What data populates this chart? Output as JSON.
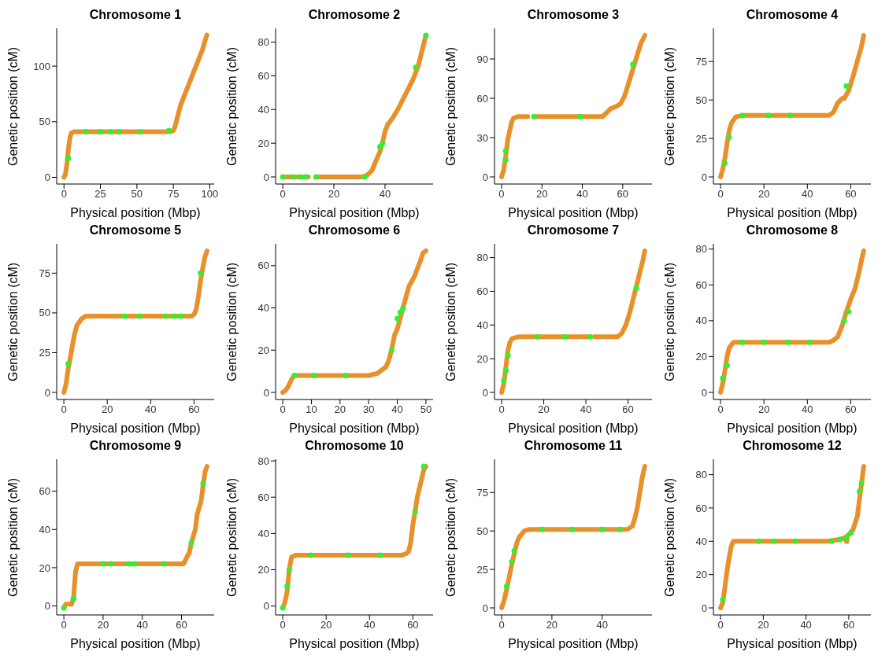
{
  "chart_data": [
    {
      "type": "scatter",
      "title": "Chromosome 1",
      "xlabel": "Physical position (Mbp)",
      "ylabel": "Genetic position (cM)",
      "xlim": [
        -5,
        103
      ],
      "xticks": [
        0,
        25,
        50,
        75,
        100
      ],
      "ylim": [
        -6,
        134
      ],
      "yticks": [
        0,
        50,
        100
      ],
      "grid": false,
      "legend": false,
      "series": [
        {
          "type": "line",
          "color": "#e8902a",
          "x": [
            0,
            1,
            2,
            3,
            4,
            5,
            7,
            20,
            50,
            72,
            75,
            76,
            78,
            80,
            83,
            86,
            89,
            92,
            95,
            97,
            98
          ],
          "values": [
            0,
            3,
            12,
            25,
            35,
            40,
            41,
            41,
            41,
            41,
            42,
            45,
            55,
            65,
            75,
            85,
            95,
            105,
            115,
            124,
            128
          ]
        },
        {
          "type": "scatter",
          "color": "#33ee33",
          "x": [
            3,
            15,
            25,
            32,
            38,
            52,
            72
          ],
          "values": [
            17,
            41,
            41,
            41,
            41,
            41,
            42
          ]
        }
      ]
    },
    {
      "type": "scatter",
      "title": "Chromosome 2",
      "xlabel": "Physical position (Mbp)",
      "ylabel": "Genetic position (cM)",
      "xlim": [
        -2.8,
        58.8
      ],
      "xticks": [
        0,
        20,
        40
      ],
      "ylim": [
        -4.2,
        88.2
      ],
      "yticks": [
        0,
        20,
        40,
        60,
        80
      ],
      "grid": false,
      "legend": false,
      "series": [
        {
          "type": "line",
          "color": "#e8902a",
          "x": [
            0,
            10,
            11.5,
            13,
            25,
            31,
            33,
            35,
            36,
            38,
            39,
            40,
            41,
            43,
            45,
            47,
            49,
            51,
            53,
            54,
            55,
            56
          ],
          "values": [
            0,
            0,
            null,
            0,
            0,
            0,
            1,
            4,
            8,
            15,
            20,
            27,
            31,
            35,
            40,
            46,
            52,
            58,
            66,
            72,
            78,
            84
          ]
        },
        {
          "type": "scatter",
          "color": "#33ee33",
          "x": [
            0,
            4,
            7,
            9,
            13,
            32,
            38,
            39,
            52,
            56
          ],
          "values": [
            0,
            0,
            0,
            0,
            0,
            0,
            18,
            20,
            65,
            84
          ]
        }
      ]
    },
    {
      "type": "scatter",
      "title": "Chromosome 3",
      "xlabel": "Physical position (Mbp)",
      "ylabel": "Genetic position (cM)",
      "xlim": [
        -3.5,
        74.5
      ],
      "xticks": [
        0,
        20,
        40,
        60
      ],
      "ylim": [
        -5.4,
        113.4
      ],
      "yticks": [
        0,
        30,
        60,
        90
      ],
      "grid": false,
      "legend": false,
      "series": [
        {
          "type": "line",
          "color": "#e8902a",
          "x": [
            0,
            1,
            2,
            3,
            4,
            5,
            6,
            8,
            13,
            14.5,
            16,
            40,
            50,
            52,
            54,
            57,
            59,
            61,
            63,
            65,
            67,
            69,
            71
          ],
          "values": [
            0,
            5,
            15,
            28,
            35,
            42,
            45,
            46,
            46,
            null,
            46,
            46,
            46,
            49,
            52,
            54,
            56,
            62,
            72,
            82,
            92,
            102,
            108
          ]
        },
        {
          "type": "scatter",
          "color": "#33ee33",
          "x": [
            2,
            2,
            16,
            39,
            65
          ],
          "values": [
            13,
            20,
            46,
            46,
            86
          ]
        }
      ]
    },
    {
      "type": "scatter",
      "title": "Chromosome 4",
      "xlabel": "Physical position (Mbp)",
      "ylabel": "Genetic position (cM)",
      "xlim": [
        -3.3,
        69.3
      ],
      "xticks": [
        0,
        20,
        40,
        60
      ],
      "ylim": [
        -4.6,
        96.6
      ],
      "yticks": [
        0,
        25,
        50,
        75
      ],
      "grid": false,
      "legend": false,
      "series": [
        {
          "type": "line",
          "color": "#e8902a",
          "x": [
            0,
            1,
            2,
            3,
            4,
            5,
            7,
            10,
            30,
            50,
            52,
            54,
            56,
            57,
            59,
            61,
            63,
            65,
            66
          ],
          "values": [
            0,
            5,
            12,
            22,
            30,
            35,
            39,
            40,
            40,
            40,
            42,
            48,
            51,
            51,
            56,
            65,
            75,
            85,
            92
          ]
        },
        {
          "type": "scatter",
          "color": "#33ee33",
          "x": [
            2,
            4,
            10,
            22,
            32,
            58
          ],
          "values": [
            9,
            26,
            40,
            40,
            40,
            59
          ]
        }
      ]
    },
    {
      "type": "scatter",
      "title": "Chromosome 5",
      "xlabel": "Physical position (Mbp)",
      "ylabel": "Genetic position (cM)",
      "xlim": [
        -3.3,
        69.3
      ],
      "xticks": [
        0,
        20,
        40,
        60
      ],
      "ylim": [
        -4.45,
        93.45
      ],
      "yticks": [
        0,
        25,
        50,
        75
      ],
      "grid": false,
      "legend": false,
      "series": [
        {
          "type": "line",
          "color": "#e8902a",
          "x": [
            0,
            1,
            2,
            3,
            4,
            5,
            6,
            8,
            10,
            30,
            59,
            60,
            61,
            62,
            63,
            64,
            65,
            66
          ],
          "values": [
            0,
            5,
            15,
            22,
            30,
            37,
            42,
            46,
            48,
            48,
            48,
            49,
            52,
            60,
            70,
            78,
            85,
            89
          ]
        },
        {
          "type": "scatter",
          "color": "#33ee33",
          "x": [
            2,
            28,
            35,
            47,
            51,
            54,
            63
          ],
          "values": [
            18,
            48,
            48,
            48,
            48,
            48,
            75
          ]
        }
      ]
    },
    {
      "type": "scatter",
      "title": "Chromosome 6",
      "xlabel": "Physical position (Mbp)",
      "ylabel": "Genetic position (cM)",
      "xlim": [
        -2.5,
        52.5
      ],
      "xticks": [
        0,
        10,
        20,
        30,
        40,
        50
      ],
      "ylim": [
        -3.35,
        70.35
      ],
      "yticks": [
        0,
        20,
        40,
        60
      ],
      "grid": false,
      "legend": false,
      "series": [
        {
          "type": "line",
          "color": "#e8902a",
          "x": [
            0,
            1,
            2,
            3,
            4,
            8,
            10,
            30,
            33,
            35,
            36,
            37,
            38,
            39,
            40,
            41,
            42,
            43,
            44,
            46,
            48,
            49,
            50
          ],
          "values": [
            0,
            1,
            3,
            6,
            8,
            8,
            8,
            8,
            9,
            11,
            12,
            15,
            20,
            27,
            30,
            35,
            40,
            45,
            50,
            55,
            62,
            66,
            67
          ]
        },
        {
          "type": "scatter",
          "color": "#33ee33",
          "x": [
            4,
            11,
            22,
            38,
            40,
            41,
            42
          ],
          "values": [
            8,
            8,
            8,
            20,
            35,
            38,
            40
          ]
        }
      ]
    },
    {
      "type": "scatter",
      "title": "Chromosome 7",
      "xlabel": "Physical position (Mbp)",
      "ylabel": "Genetic position (cM)",
      "xlim": [
        -3.4,
        71.4
      ],
      "xticks": [
        0,
        20,
        40,
        60
      ],
      "ylim": [
        -4.2,
        88.2
      ],
      "yticks": [
        0,
        20,
        40,
        60,
        80
      ],
      "grid": false,
      "legend": false,
      "series": [
        {
          "type": "line",
          "color": "#e8902a",
          "x": [
            0,
            1,
            2,
            3,
            4,
            5,
            8,
            20,
            42,
            43,
            44,
            55,
            57,
            59,
            61,
            63,
            65,
            67,
            68
          ],
          "values": [
            0,
            5,
            15,
            25,
            30,
            32,
            33,
            33,
            33,
            null,
            33,
            33,
            35,
            40,
            48,
            58,
            68,
            78,
            84
          ]
        },
        {
          "type": "scatter",
          "color": "#33ee33",
          "x": [
            1,
            2,
            3,
            17,
            30,
            42,
            64
          ],
          "values": [
            7,
            13,
            22,
            33,
            33,
            33,
            62
          ]
        }
      ]
    },
    {
      "type": "scatter",
      "title": "Chromosome 8",
      "xlabel": "Physical position (Mbp)",
      "ylabel": "Genetic position (cM)",
      "xlim": [
        -3.3,
        69.3
      ],
      "xticks": [
        0,
        20,
        40,
        60
      ],
      "ylim": [
        -3.95,
        82.95
      ],
      "yticks": [
        0,
        20,
        40,
        60,
        80
      ],
      "grid": false,
      "legend": false,
      "series": [
        {
          "type": "line",
          "color": "#e8902a",
          "x": [
            0,
            1,
            2,
            3,
            4,
            6,
            10,
            50,
            52,
            54,
            56,
            58,
            60,
            62,
            64,
            65,
            66
          ],
          "values": [
            0,
            5,
            12,
            20,
            25,
            28,
            28,
            28,
            29,
            31,
            37,
            45,
            52,
            58,
            68,
            74,
            79
          ]
        },
        {
          "type": "scatter",
          "color": "#33ee33",
          "x": [
            1,
            3,
            10,
            20,
            31,
            41,
            57,
            59
          ],
          "values": [
            8,
            15,
            28,
            28,
            28,
            28,
            40,
            45
          ]
        }
      ]
    },
    {
      "type": "scatter",
      "title": "Chromosome 9",
      "xlabel": "Physical position (Mbp)",
      "ylabel": "Genetic position (cM)",
      "xlim": [
        -3.65,
        76.65
      ],
      "xticks": [
        0,
        20,
        40,
        60
      ],
      "ylim": [
        -4.7,
        76.7
      ],
      "yticks": [
        0,
        20,
        40,
        60
      ],
      "grid": false,
      "legend": false,
      "series": [
        {
          "type": "line",
          "color": "#e8902a",
          "x": [
            0,
            1,
            4,
            5,
            5.5,
            6,
            7,
            10,
            40,
            61,
            62,
            64,
            65,
            67,
            68,
            70,
            71,
            72,
            73
          ],
          "values": [
            -1,
            1,
            1,
            5,
            12,
            18,
            22,
            22,
            22,
            22,
            24,
            28,
            33,
            40,
            48,
            55,
            63,
            70,
            73
          ]
        },
        {
          "type": "scatter",
          "color": "#33ee33",
          "x": [
            0,
            5,
            20,
            24,
            33,
            36,
            51,
            65,
            71
          ],
          "values": [
            -1,
            4,
            22,
            22,
            22,
            22,
            22,
            33,
            64
          ]
        }
      ]
    },
    {
      "type": "scatter",
      "title": "Chromosome 10",
      "xlabel": "Physical position (Mbp)",
      "ylabel": "Genetic position (cM)",
      "xlim": [
        -3.3,
        69.3
      ],
      "xticks": [
        0,
        20,
        40,
        60
      ],
      "ylim": [
        -4.9,
        80.9
      ],
      "yticks": [
        0,
        20,
        40,
        60,
        80
      ],
      "grid": false,
      "legend": false,
      "series": [
        {
          "type": "line",
          "color": "#e8902a",
          "x": [
            0,
            1,
            2,
            3,
            4,
            6,
            20,
            55,
            57,
            58,
            59,
            60,
            61,
            62,
            64,
            65,
            66
          ],
          "values": [
            -1,
            2,
            8,
            20,
            27,
            28,
            28,
            28,
            29,
            30,
            35,
            45,
            52,
            60,
            70,
            75,
            77
          ]
        },
        {
          "type": "scatter",
          "color": "#33ee33",
          "x": [
            0,
            2,
            3,
            13,
            30,
            45,
            61,
            65
          ],
          "values": [
            -1,
            11,
            20,
            28,
            28,
            28,
            52,
            77
          ]
        }
      ]
    },
    {
      "type": "scatter",
      "title": "Chromosome 11",
      "xlabel": "Physical position (Mbp)",
      "ylabel": "Genetic position (cM)",
      "xlim": [
        -2.85,
        59.85
      ],
      "xticks": [
        0,
        20,
        40
      ],
      "ylim": [
        -4.6,
        96.6
      ],
      "yticks": [
        0,
        25,
        50,
        75
      ],
      "grid": false,
      "legend": false,
      "series": [
        {
          "type": "line",
          "color": "#e8902a",
          "x": [
            0,
            1,
            2,
            3,
            4,
            5,
            6,
            7,
            8,
            9,
            11,
            30,
            50,
            52,
            53,
            54,
            55,
            56,
            57
          ],
          "values": [
            0,
            5,
            12,
            20,
            28,
            35,
            42,
            46,
            48,
            50,
            51,
            51,
            51,
            53,
            58,
            65,
            75,
            85,
            92
          ]
        },
        {
          "type": "scatter",
          "color": "#33ee33",
          "x": [
            2,
            4,
            5,
            16,
            28,
            40,
            47
          ],
          "values": [
            14,
            30,
            37,
            51,
            51,
            51,
            51
          ]
        }
      ]
    },
    {
      "type": "scatter",
      "title": "Chromosome 12",
      "xlabel": "Physical position (Mbp)",
      "ylabel": "Genetic position (cM)",
      "xlim": [
        -3.35,
        70.35
      ],
      "xticks": [
        0,
        20,
        40,
        60
      ],
      "ylim": [
        -4.25,
        89.25
      ],
      "yticks": [
        0,
        20,
        40,
        60,
        80
      ],
      "grid": false,
      "legend": false,
      "series": [
        {
          "type": "line",
          "color": "#e8902a",
          "x": [
            0,
            1,
            2,
            3,
            4,
            5,
            6,
            10,
            40,
            50,
            55,
            58,
            60,
            62,
            64,
            65,
            66,
            67
          ],
          "values": [
            0,
            3,
            12,
            22,
            30,
            37,
            40,
            40,
            40,
            40,
            41,
            42,
            44,
            47,
            55,
            65,
            75,
            85
          ]
        },
        {
          "type": "scatter",
          "color": "#e8902a",
          "x": [
            59
          ],
          "values": [
            40
          ]
        },
        {
          "type": "scatter",
          "color": "#33ee33",
          "x": [
            1,
            18,
            25,
            35,
            52,
            56,
            59,
            61,
            65,
            66
          ],
          "values": [
            5,
            40,
            40,
            40,
            40,
            41,
            42,
            45,
            70,
            75
          ]
        }
      ]
    }
  ]
}
